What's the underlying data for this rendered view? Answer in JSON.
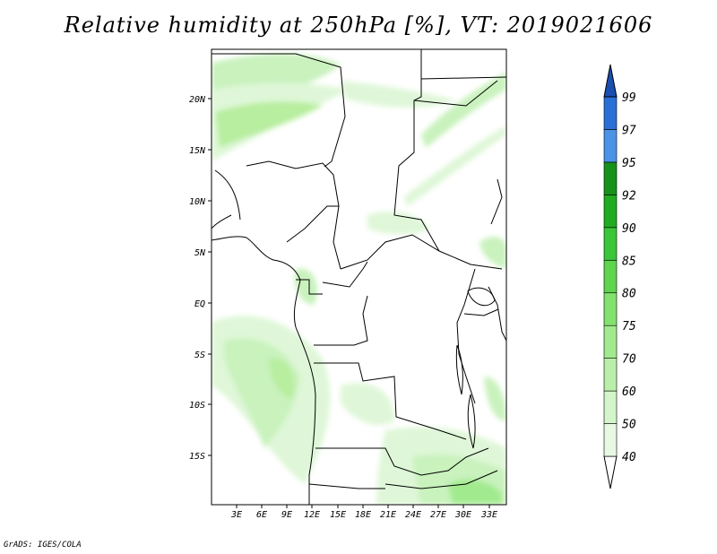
{
  "title": "Relative humidity at 250hPa [%], VT: 2019021606",
  "credit": "GrADS: IGES/COLA",
  "map": {
    "lat_labels": [
      "20N",
      "15N",
      "10N",
      "5N",
      "EQ",
      "5S",
      "10S",
      "15S"
    ],
    "lon_labels": [
      "3E",
      "6E",
      "9E",
      "12E",
      "15E",
      "18E",
      "21E",
      "24E",
      "27E",
      "30E",
      "33E"
    ],
    "extent": {
      "lon_min": 0,
      "lon_max": 35,
      "lat_min": -20,
      "lat_max": 25
    }
  },
  "colorbar": {
    "levels": [
      "40",
      "50",
      "60",
      "70",
      "75",
      "80",
      "85",
      "90",
      "92",
      "95",
      "97",
      "99"
    ],
    "colors": [
      "#ffffff",
      "#e8f9e3",
      "#d4f4cb",
      "#b9efa8",
      "#a2ea8e",
      "#83e16d",
      "#5fd44f",
      "#39c638",
      "#20ac20",
      "#16911a",
      "#4a93e6",
      "#2a6fd6",
      "#1a4fb0"
    ]
  }
}
